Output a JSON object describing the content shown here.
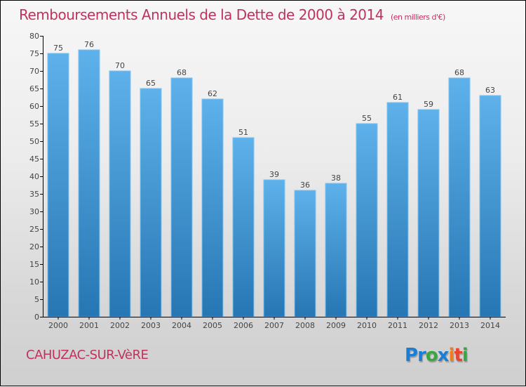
{
  "title": "Remboursements Annuels de la Dette de 2000 à 2014",
  "subtitle": "(en milliers d'€)",
  "city": "CAHUZAC-SUR-VèRE",
  "logo": {
    "letters": [
      "P",
      "r",
      "o",
      "x",
      "i",
      "t",
      "i"
    ],
    "colors": [
      "#1a7fd4",
      "#1a7fd4",
      "#3aa640",
      "#1a7fd4",
      "#f07c1a",
      "#e8452c",
      "#3aa640"
    ]
  },
  "colors": {
    "title": "#c0325e",
    "bar_top": "#5eb1ea",
    "bar_bottom": "#2676b3",
    "bar_edge": "#7cc3f2"
  },
  "chart_data": {
    "type": "bar",
    "title": "Remboursements Annuels de la Dette de 2000 à 2014 (en milliers d'€)",
    "xlabel": "",
    "ylabel": "",
    "categories": [
      "2000",
      "2001",
      "2002",
      "2003",
      "2004",
      "2005",
      "2006",
      "2007",
      "2008",
      "2009",
      "2010",
      "2011",
      "2012",
      "2013",
      "2014"
    ],
    "values": [
      75,
      76,
      70,
      65,
      68,
      62,
      51,
      39,
      36,
      38,
      55,
      61,
      59,
      68,
      63
    ],
    "ylim": [
      0,
      80
    ],
    "yticks": [
      0,
      5,
      10,
      15,
      20,
      25,
      30,
      35,
      40,
      45,
      50,
      55,
      60,
      65,
      70,
      75,
      80
    ],
    "grid": false,
    "legend": "none"
  }
}
